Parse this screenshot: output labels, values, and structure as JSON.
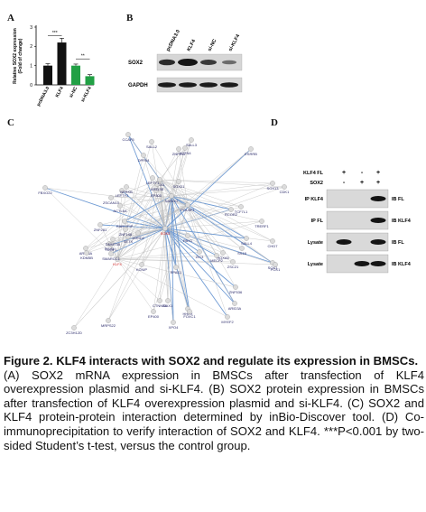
{
  "panels": {
    "A": {
      "letter": "A",
      "chart_data": {
        "type": "bar",
        "ylabel": "Relative SOX2 expression\n(Fold of change)",
        "categories": [
          "pcDNA3.0",
          "KLF4",
          "si-NC",
          "si-KLF4"
        ],
        "values": [
          1.0,
          2.2,
          1.0,
          0.45
        ],
        "errors": [
          0.1,
          0.22,
          0.08,
          0.08
        ],
        "ylim": [
          0,
          3
        ],
        "yticks": [
          "0",
          "1",
          "2",
          "3"
        ],
        "colors": [
          "#111111",
          "#111111",
          "#22a045",
          "#22a045"
        ],
        "significance": [
          "***",
          "**"
        ]
      }
    },
    "B": {
      "letter": "B",
      "lanes": [
        "pcDNA3.0",
        "KLF4",
        "si-NC",
        "si-KLF4"
      ],
      "rows": [
        "SOX2",
        "GAPDH"
      ]
    },
    "C": {
      "letter": "C",
      "nodes": [
        "CCAF5",
        "SALL2",
        "SALL3",
        "ZNF281",
        "HOXA5",
        "SOX3",
        "SOX1",
        "KLF4",
        "MTA1",
        "LEFTY2",
        "NANOG",
        "POU5F1",
        "SOX2",
        "CTNNB1",
        "EP300",
        "FBXO22",
        "ARID5A",
        "ZC3H12D",
        "RAB11FIP",
        "ARID3B",
        "ZSCAN10",
        "ZIC3",
        "CDK1",
        "ZSC21",
        "RCOR2",
        "TRERF1",
        "CHD7",
        "SMARCC1",
        "SS18",
        "LEFTY1",
        "ARID3A",
        "SETX",
        "ACTL6A",
        "ZNF536",
        "KCNIP",
        "POX1",
        "XPO4",
        "EP400",
        "MRPS22",
        "MYEF2",
        "HHEX",
        "ZNF146",
        "FOXC1",
        "NFRKB",
        "ACTN4",
        "MECP2",
        "PBX1",
        "JARID2",
        "SALL4",
        "DPPA4",
        "TCF7L1",
        "TDGF1",
        "KDM5B",
        "DNMT3B",
        "EPAS1",
        "SOX21",
        "DAX1",
        "ESRRB",
        "SOX13",
        "ZNF143"
      ]
    },
    "D": {
      "letter": "D",
      "row_labels": [
        "KLF4 FL",
        "SOX2"
      ],
      "marks": [
        [
          "+",
          "-",
          "+"
        ],
        [
          "-",
          "+",
          "+"
        ]
      ],
      "blots": [
        {
          "left": "IP KLF4",
          "right": "IB FL"
        },
        {
          "left": "IP FL",
          "right": "IB KLF4"
        },
        {
          "left": "Lysate",
          "right": "IB FL"
        },
        {
          "left": "Lysate",
          "right": "IB KLF4"
        }
      ]
    }
  },
  "caption": {
    "title": "Figure 2. KLF4 interacts with SOX2 and regulate its expression in BMSCs.",
    "body": "(A) SOX2 mRNA expression in BMSCs after transfection of KLF4 overexpression plasmid and si-KLF4. (B) SOX2 protein expression in BMSCs after transfection of KLF4 overexpression plasmid and si-KLF4. (C) SOX2 and KLF4 protein-protein interaction determined by inBio-Discover tool. (D) Co-immunoprecipitation to verify interaction of SOX2 and KLF4. ***P<0.001 by two-sided Student’s t-test, versus the control group."
  }
}
